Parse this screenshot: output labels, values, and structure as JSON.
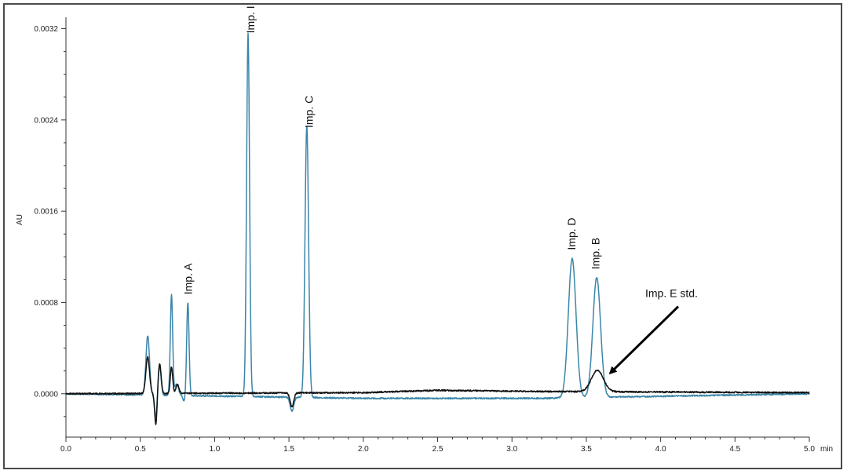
{
  "chart_data": {
    "type": "line",
    "title": "",
    "xlabel": "min",
    "ylabel": "AU",
    "xlim": [
      0.0,
      5.0
    ],
    "ylim": [
      -0.00038,
      0.0033
    ],
    "grid": false,
    "x_ticks": [
      "0.0",
      "0.5",
      "1.0",
      "1.5",
      "2.0",
      "2.5",
      "3.0",
      "3.5",
      "4.0",
      "4.5",
      "5.0"
    ],
    "x_tick_values": [
      0.0,
      0.5,
      1.0,
      1.5,
      2.0,
      2.5,
      3.0,
      3.5,
      4.0,
      4.5,
      5.0
    ],
    "y_ticks": [
      "0.0000",
      "0.0008",
      "0.0016",
      "0.0024",
      "0.0032"
    ],
    "y_tick_values": [
      0.0,
      0.0008,
      0.0016,
      0.0024,
      0.0032
    ],
    "series": [
      {
        "color": "#3b86a8",
        "peaks": [
          {
            "t": 0.55,
            "h": 0.00052,
            "w": 0.012
          },
          {
            "t": 0.63,
            "h": 0.00025,
            "w": 0.01
          },
          {
            "t": 0.71,
            "h": 0.00088,
            "w": 0.008
          },
          {
            "t": 0.745,
            "h": 0.0001,
            "w": 0.012
          },
          {
            "t": 0.82,
            "h": 0.00082,
            "w": 0.008
          },
          {
            "t": 1.225,
            "h": 0.00318,
            "w": 0.01
          },
          {
            "t": 1.52,
            "h": -0.00012,
            "w": 0.012
          },
          {
            "t": 1.62,
            "h": 0.00238,
            "w": 0.012
          },
          {
            "t": 3.405,
            "h": 0.00122,
            "w": 0.026
          },
          {
            "t": 3.57,
            "h": 0.00105,
            "w": 0.026
          }
        ],
        "dips": [
          {
            "t": 0.605,
            "h": -0.0002,
            "w": 0.008
          },
          {
            "t": 0.795,
            "h": -5e-05,
            "w": 0.008
          }
        ],
        "baseline_drift": [
          {
            "x": 0.0,
            "y": 0.0
          },
          {
            "x": 2.0,
            "y": -4e-05
          },
          {
            "x": 3.2,
            "y": -4e-05
          },
          {
            "x": 5.0,
            "y": 0.0
          }
        ]
      },
      {
        "color": "#111111",
        "peaks": [
          {
            "t": 0.55,
            "h": 0.00032,
            "w": 0.012
          },
          {
            "t": 0.63,
            "h": 0.00026,
            "w": 0.01
          },
          {
            "t": 0.71,
            "h": 0.00023,
            "w": 0.008
          },
          {
            "t": 0.75,
            "h": 8e-05,
            "w": 0.01
          },
          {
            "t": 1.52,
            "h": -0.00012,
            "w": 0.012
          },
          {
            "t": 3.575,
            "h": 0.00019,
            "w": 0.04
          }
        ],
        "dips": [
          {
            "t": 0.605,
            "h": -0.00028,
            "w": 0.008
          }
        ],
        "baseline_drift": [
          {
            "x": 0.0,
            "y": 0.0
          },
          {
            "x": 2.0,
            "y": 1e-05
          },
          {
            "x": 2.5,
            "y": 3e-05
          },
          {
            "x": 3.2,
            "y": 2e-05
          },
          {
            "x": 5.0,
            "y": 1e-05
          }
        ]
      }
    ],
    "annotations": [
      {
        "text": "Imp. A",
        "x": 0.82,
        "y": 0.00087,
        "rotated": true
      },
      {
        "text": "Imp. I",
        "x": 1.24,
        "y": 0.00316,
        "rotated": true
      },
      {
        "text": "Imp. C",
        "x": 1.635,
        "y": 0.00233,
        "rotated": true
      },
      {
        "text": "Imp. D",
        "x": 3.4,
        "y": 0.00126,
        "rotated": true
      },
      {
        "text": "Imp. B",
        "x": 3.56,
        "y": 0.00109,
        "rotated": true
      },
      {
        "text": "Imp. E std.",
        "x": 4.15,
        "y": 0.00082,
        "rotated": false,
        "arrow_to": {
          "x": 3.66,
          "y": 0.00018
        }
      }
    ]
  }
}
